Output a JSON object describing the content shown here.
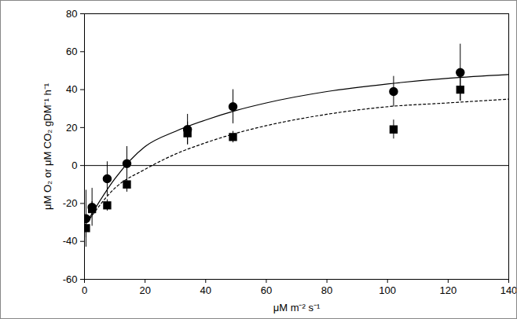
{
  "chart_data": {
    "type": "scatter",
    "x_label": "μM m⁻² s⁻¹",
    "y_label": "μM O₂ or μM CO₂ gDM⁻¹ h⁻¹",
    "xlim": [
      0,
      140
    ],
    "xticks": [
      0,
      20,
      40,
      60,
      80,
      100,
      120,
      140
    ],
    "ylim": [
      -60,
      80
    ],
    "yticks": [
      -60,
      -40,
      -20,
      0,
      20,
      40,
      60,
      80
    ],
    "series": [
      {
        "type": "scatter",
        "marker": "circle",
        "color": "#000000",
        "x": [
          0.5,
          2.5,
          7.5,
          14,
          34,
          49,
          102,
          124
        ],
        "values": [
          -28,
          -22,
          -7,
          1,
          19,
          31,
          39,
          49
        ],
        "errors": [
          15,
          10,
          9,
          9,
          8,
          9,
          8,
          15
        ]
      },
      {
        "type": "scatter",
        "marker": "square",
        "color": "#000000",
        "x": [
          0.5,
          2.5,
          7.5,
          14,
          34,
          49,
          102,
          124
        ],
        "values": [
          -33,
          -23,
          -21,
          -10,
          17,
          15,
          19,
          40
        ],
        "errors": [
          5,
          4,
          3,
          4,
          6,
          3,
          5,
          6
        ]
      },
      {
        "type": "line",
        "line_style": "solid",
        "color": "#000000",
        "x": [
          0,
          10,
          20,
          30,
          40,
          50,
          60,
          80,
          100,
          120,
          140
        ],
        "values": [
          -32,
          -7,
          10,
          18,
          24,
          29,
          33,
          39,
          43,
          46,
          48
        ]
      },
      {
        "type": "line",
        "line_style": "dotted",
        "color": "#000000",
        "x": [
          0,
          10,
          20,
          30,
          40,
          50,
          60,
          80,
          100,
          120,
          140
        ],
        "values": [
          -32,
          -12,
          -2,
          6,
          12,
          17,
          21,
          27,
          31,
          33,
          35
        ]
      }
    ]
  }
}
